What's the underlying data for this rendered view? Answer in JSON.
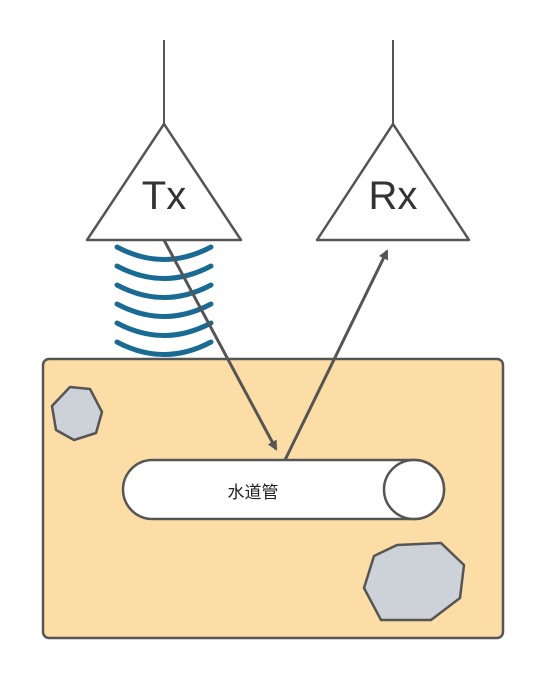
{
  "transmitter": {
    "label": "Tx"
  },
  "receiver": {
    "label": "Rx"
  },
  "pipe": {
    "label": "水道管"
  },
  "colors": {
    "soil_fill": "#fddda6",
    "outline": "#555555",
    "rock_fill": "#cdd2d9",
    "wave": "#1a6b93",
    "signal_path": "#555555",
    "background": "#ffffff"
  }
}
